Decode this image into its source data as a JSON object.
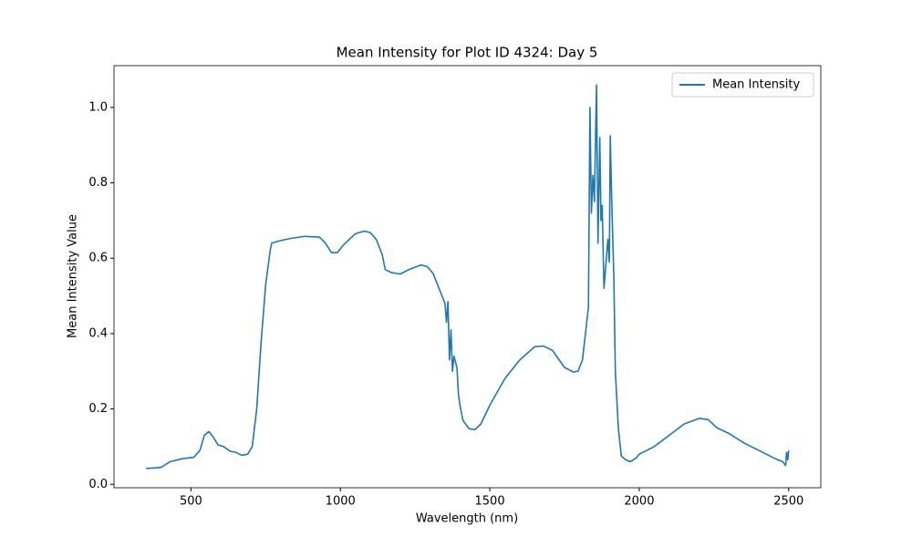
{
  "chart_data": {
    "type": "line",
    "title": "Mean Intensity for Plot ID 4324: Day 5",
    "xlabel": "Wavelength (nm)",
    "ylabel": "Mean Intensity Value",
    "x": [
      350,
      400,
      430,
      470,
      510,
      530,
      545,
      560,
      575,
      590,
      610,
      630,
      650,
      670,
      690,
      705,
      720,
      735,
      750,
      765,
      770,
      790,
      830,
      880,
      930,
      950,
      970,
      990,
      1000,
      1010,
      1050,
      1080,
      1100,
      1120,
      1140,
      1150,
      1170,
      1200,
      1230,
      1270,
      1290,
      1310,
      1330,
      1350,
      1355,
      1360,
      1365,
      1370,
      1375,
      1380,
      1390,
      1395,
      1400,
      1410,
      1430,
      1450,
      1470,
      1500,
      1550,
      1600,
      1650,
      1680,
      1710,
      1750,
      1780,
      1795,
      1810,
      1820,
      1830,
      1835,
      1840,
      1845,
      1850,
      1857,
      1862,
      1868,
      1872,
      1876,
      1882,
      1890,
      1895,
      1900,
      1903,
      1908,
      1915,
      1920,
      1930,
      1940,
      1955,
      1970,
      1990,
      2000,
      2050,
      2100,
      2150,
      2200,
      2230,
      2260,
      2300,
      2350,
      2400,
      2450,
      2480,
      2490,
      2493,
      2497,
      2500
    ],
    "series": [
      {
        "name": "Mean Intensity",
        "color": "#1f77b4",
        "values": [
          0.042,
          0.045,
          0.06,
          0.068,
          0.072,
          0.09,
          0.13,
          0.14,
          0.125,
          0.105,
          0.1,
          0.088,
          0.085,
          0.077,
          0.08,
          0.1,
          0.2,
          0.38,
          0.53,
          0.62,
          0.64,
          0.645,
          0.652,
          0.658,
          0.656,
          0.64,
          0.615,
          0.615,
          0.625,
          0.635,
          0.665,
          0.672,
          0.668,
          0.65,
          0.61,
          0.57,
          0.562,
          0.558,
          0.57,
          0.582,
          0.578,
          0.56,
          0.52,
          0.48,
          0.43,
          0.485,
          0.33,
          0.41,
          0.3,
          0.34,
          0.31,
          0.24,
          0.21,
          0.17,
          0.148,
          0.145,
          0.16,
          0.21,
          0.28,
          0.33,
          0.365,
          0.367,
          0.355,
          0.31,
          0.298,
          0.3,
          0.33,
          0.4,
          0.47,
          1.0,
          0.72,
          0.82,
          0.75,
          1.06,
          0.64,
          0.92,
          0.7,
          0.74,
          0.52,
          0.6,
          0.65,
          0.59,
          0.925,
          0.75,
          0.55,
          0.3,
          0.15,
          0.075,
          0.065,
          0.06,
          0.07,
          0.08,
          0.1,
          0.13,
          0.16,
          0.175,
          0.172,
          0.15,
          0.135,
          0.11,
          0.09,
          0.07,
          0.06,
          0.05,
          0.085,
          0.065,
          0.09
        ]
      }
    ],
    "xlim": [
      242.5,
      2607.5
    ],
    "ylim": [
      -0.009,
      1.111
    ],
    "xticks": [
      500,
      1000,
      1500,
      2000,
      2500
    ],
    "yticks": [
      {
        "value": 0,
        "label": "0.0"
      },
      0.2,
      0.4,
      0.6,
      0.8,
      {
        "value": 1,
        "label": "1.0"
      }
    ],
    "legend": "upper right"
  }
}
